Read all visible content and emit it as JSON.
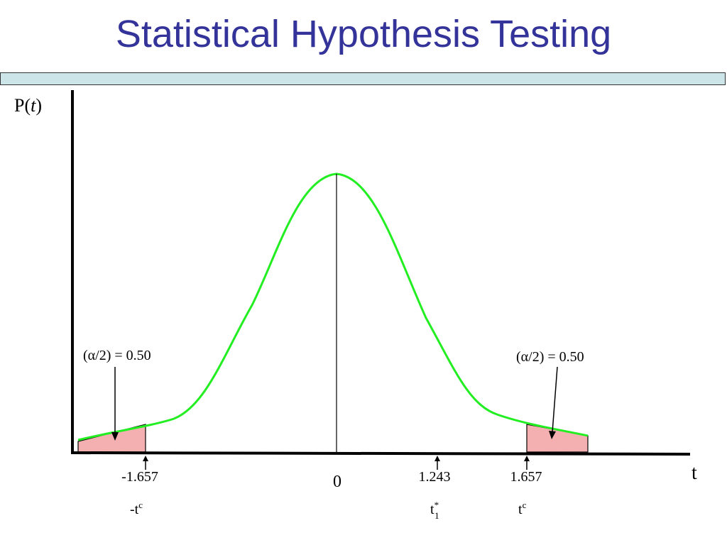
{
  "slide": {
    "title": "Statistical Hypothesis Testing"
  },
  "diagram": {
    "y_axis_label": "P(",
    "y_axis_label_var": "t",
    "y_axis_label_close": ")",
    "x_axis_label": "t",
    "left_tail": {
      "annotation": "(α/2) = 0.50",
      "value": "-1.657",
      "symbol_main": "-t",
      "symbol_sup": "c"
    },
    "right_tail": {
      "annotation": "(α/2) = 0.50",
      "value": "1.657",
      "symbol_main": "t",
      "symbol_sup": "c"
    },
    "center_value": "0",
    "test_statistic": {
      "value": "1.243",
      "symbol_main": "t",
      "symbol_sup": "*",
      "symbol_sub": "1"
    },
    "colors": {
      "curve": "#22ee22",
      "tail_fill": "#f4b0b0",
      "title": "#333399",
      "band": "#cce5e8"
    }
  }
}
